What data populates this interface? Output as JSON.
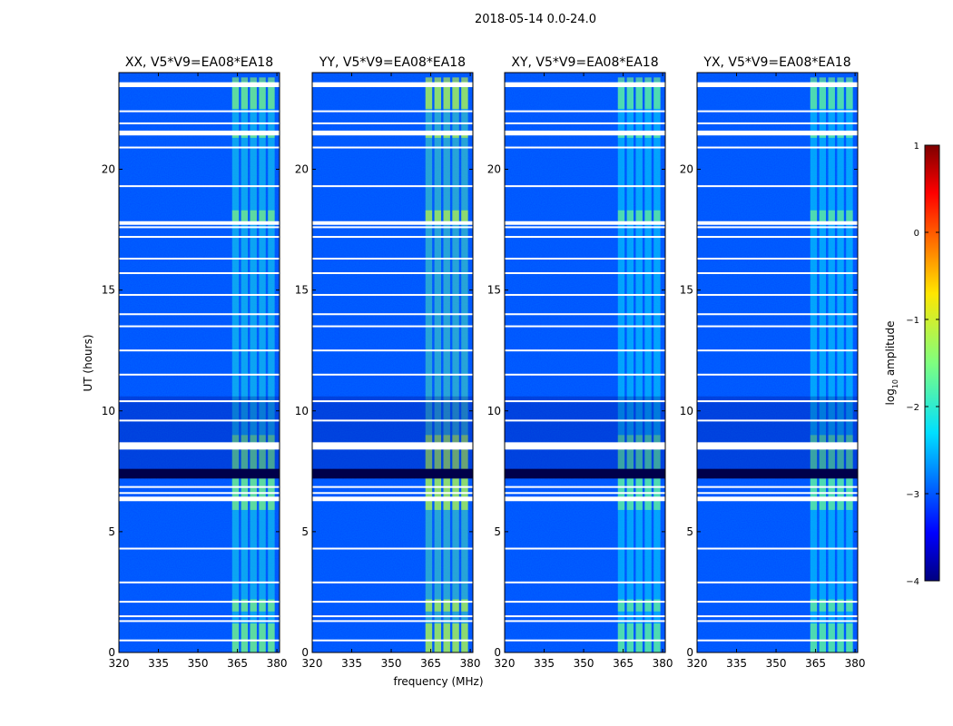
{
  "figure": {
    "suptitle": "2018-05-14 0.0-24.0",
    "shared_xlabel": "frequency (MHz)",
    "shared_ylabel": "UT (hours)"
  },
  "chart_data": {
    "type": "heatmap",
    "colormap": "jet",
    "x_range": [
      320,
      381
    ],
    "y_range": [
      0,
      24
    ],
    "x_ticks": [
      320,
      335,
      350,
      365,
      380
    ],
    "y_ticks": [
      0,
      5,
      10,
      15,
      20
    ],
    "xlabel": "frequency (MHz)",
    "ylabel": "UT (hours)",
    "colorbar": {
      "label": "log10 amplitude",
      "label_main": "log",
      "label_sub": "10",
      "label_rest": " amplitude",
      "range": [
        -4,
        1
      ],
      "ticks": [
        1,
        0,
        -1,
        -2,
        -3,
        -4
      ],
      "tick_labels": [
        "1",
        "0",
        "−1",
        "−2",
        "−3",
        "−4"
      ]
    },
    "panels": [
      {
        "title": "XX, V5*V9=EA08*EA18",
        "background_log_amp": -3.0,
        "rfi_band_mhz": [
          363,
          380
        ],
        "rfi_peak_log_amp": -1.4
      },
      {
        "title": "YY, V5*V9=EA08*EA18",
        "background_log_amp": -3.0,
        "rfi_band_mhz": [
          363,
          380
        ],
        "rfi_peak_log_amp": -1.1
      },
      {
        "title": "XY, V5*V9=EA08*EA18",
        "background_log_amp": -3.0,
        "rfi_band_mhz": [
          363,
          380
        ],
        "rfi_peak_log_amp": -1.5
      },
      {
        "title": "YX, V5*V9=EA08*EA18",
        "background_log_amp": -3.0,
        "rfi_band_mhz": [
          363,
          380
        ],
        "rfi_peak_log_amp": -1.5
      }
    ],
    "flagged_ut_hours": [
      0.5,
      1.3,
      1.5,
      2.1,
      2.9,
      4.3,
      6.3,
      6.6,
      6.85,
      8.5,
      9.6,
      10.4,
      11.5,
      12.5,
      13.5,
      14.0,
      14.8,
      15.7,
      16.3,
      17.2,
      17.6,
      17.8,
      19.3,
      20.9,
      21.5,
      21.9,
      22.4,
      23.5
    ],
    "bright_ut_hour_ranges": [
      [
        0.0,
        1.2
      ],
      [
        1.7,
        2.2
      ],
      [
        5.9,
        9.0
      ],
      [
        17.8,
        18.3
      ],
      [
        21.3,
        21.5
      ],
      [
        22.5,
        23.8
      ]
    ]
  }
}
